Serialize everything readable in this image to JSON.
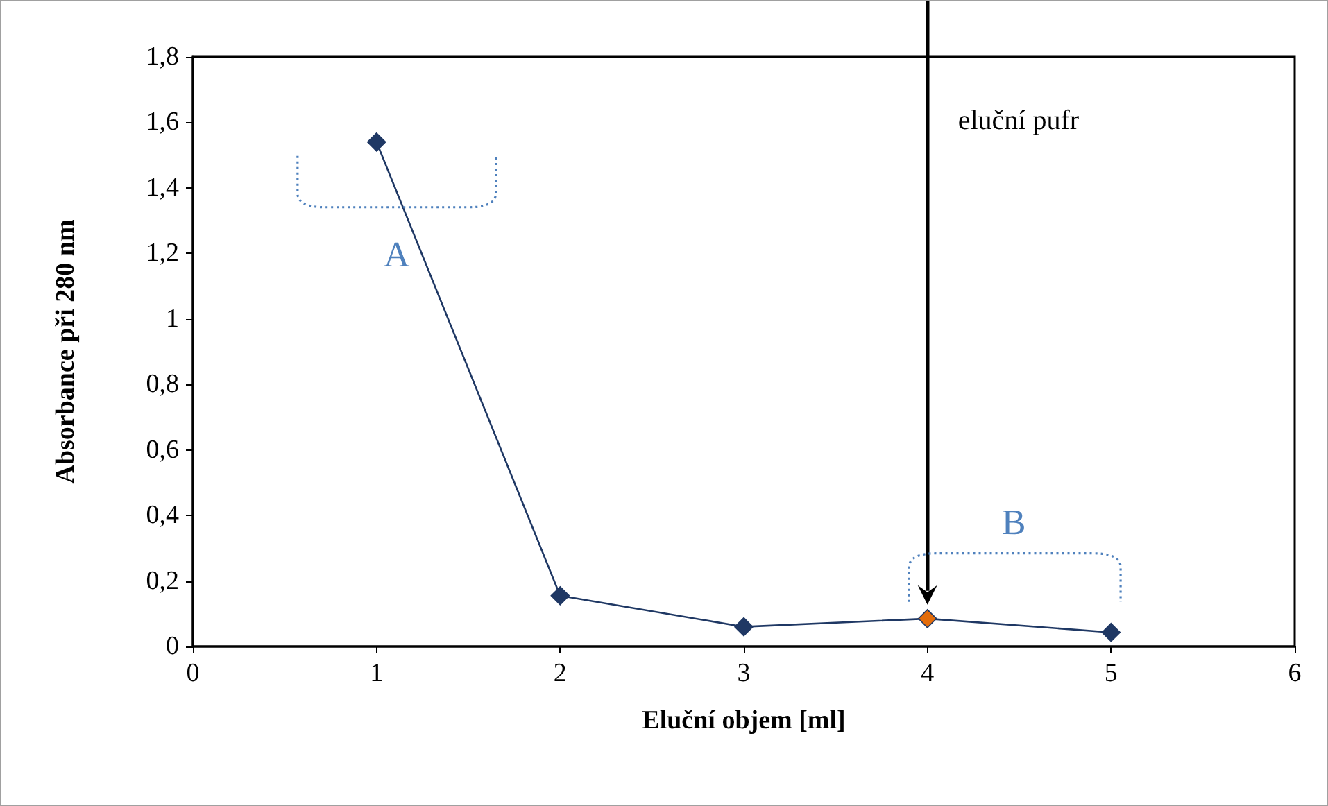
{
  "chart_data": {
    "type": "line",
    "xlabel": "Eluční objem [ml]",
    "ylabel": "Absorbance při 280 nm",
    "x": [
      1,
      2,
      3,
      4,
      5
    ],
    "values": [
      1.54,
      0.155,
      0.06,
      0.085,
      0.043
    ],
    "color": "#1f3864",
    "colors": [
      "#1f3864",
      "#1f3864",
      "#1f3864",
      "#e36c0a",
      "#1f3864"
    ],
    "marker": "diamond",
    "line_style": "solid",
    "grid": false,
    "xlim": [
      0,
      6
    ],
    "xticks": [
      0,
      1,
      2,
      3,
      4,
      5,
      6
    ],
    "ylim": [
      0,
      1.8
    ],
    "yticks": [
      0,
      {
        "value": 0.2,
        "label": "0,2"
      },
      {
        "value": 0.4,
        "label": "0,4"
      },
      {
        "value": 0.6,
        "label": "0,6"
      },
      {
        "value": 0.8,
        "label": "0,8"
      },
      1,
      {
        "value": 1.2,
        "label": "1,2"
      },
      {
        "value": 1.4,
        "label": "1,4"
      },
      {
        "value": 1.6,
        "label": "1,6"
      },
      {
        "value": 1.8,
        "label": "1,8"
      }
    ],
    "annotations": [
      "A",
      "B"
    ],
    "ref_lines": [
      {
        "axis": "x",
        "value": 4,
        "label": "eluční pufr",
        "color": "#000000"
      }
    ]
  }
}
